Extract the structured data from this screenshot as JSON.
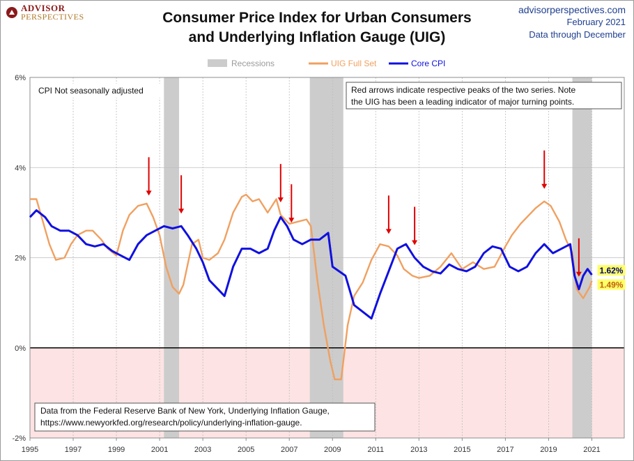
{
  "branding": {
    "logo_line1": "ADVISOR",
    "logo_line2": "PERSPECTIVES",
    "site": "advisorperspectives.com",
    "date": "February 2021",
    "data_through": "Data through December"
  },
  "colors": {
    "uig": "#f0a060",
    "core": "#1010e0",
    "recession": "#cccccc",
    "arrow": "#e00000",
    "negative_zone": "#fde3e3"
  },
  "chart_data": {
    "type": "line",
    "title": "Consumer Price Index for Urban Consumers and Underlying Inflation Gauge (UIG)",
    "title_lines": [
      "Consumer Price Index for Urban Consumers",
      "and Underlying Inflation Gauge (UIG)"
    ],
    "xlabel": "",
    "ylabel": "",
    "xlim": [
      1995,
      2022.5
    ],
    "ylim": [
      -2,
      6
    ],
    "x_ticks": [
      1995,
      1997,
      1999,
      2001,
      2003,
      2005,
      2007,
      2009,
      2011,
      2013,
      2015,
      2017,
      2019,
      2021
    ],
    "y_ticks": [
      -2,
      0,
      2,
      4,
      6
    ],
    "y_tick_labels": [
      "-2%",
      "0%",
      "2%",
      "4%",
      "6%"
    ],
    "legend": {
      "position": "top-center",
      "entries": [
        {
          "label": "Recessions",
          "kind": "band"
        },
        {
          "label": "UIG Full Set",
          "kind": "line"
        },
        {
          "label": "Core CPI",
          "kind": "line"
        }
      ]
    },
    "recessions": [
      [
        2001.2,
        2001.9
      ],
      [
        2007.95,
        2009.5
      ],
      [
        2020.1,
        2021.0
      ]
    ],
    "series": [
      {
        "name": "UIG Full Set",
        "x": [
          1995.0,
          1995.3,
          1995.6,
          1995.9,
          1996.2,
          1996.6,
          1996.9,
          1997.2,
          1997.6,
          1997.9,
          1998.3,
          1998.6,
          1999.0,
          1999.3,
          1999.6,
          2000.0,
          2000.4,
          2000.7,
          2001.0,
          2001.3,
          2001.6,
          2001.9,
          2002.1,
          2002.5,
          2002.8,
          2003.0,
          2003.3,
          2003.7,
          2004.0,
          2004.4,
          2004.8,
          2005.0,
          2005.3,
          2005.6,
          2006.0,
          2006.4,
          2006.6,
          2007.0,
          2007.4,
          2007.8,
          2008.0,
          2008.3,
          2008.6,
          2008.9,
          2009.1,
          2009.4,
          2009.7,
          2010.0,
          2010.4,
          2010.8,
          2011.2,
          2011.6,
          2012.0,
          2012.3,
          2012.7,
          2013.0,
          2013.5,
          2014.0,
          2014.5,
          2015.0,
          2015.5,
          2016.0,
          2016.5,
          2017.0,
          2017.3,
          2017.7,
          2018.0,
          2018.4,
          2018.8,
          2019.1,
          2019.5,
          2019.8,
          2020.1,
          2020.3,
          2020.6,
          2020.9,
          2021.0
        ],
        "values": [
          3.3,
          3.3,
          2.8,
          2.3,
          1.95,
          2.0,
          2.3,
          2.5,
          2.6,
          2.6,
          2.4,
          2.2,
          2.05,
          2.6,
          2.95,
          3.15,
          3.2,
          2.9,
          2.5,
          1.8,
          1.35,
          1.2,
          1.4,
          2.3,
          2.4,
          2.0,
          1.95,
          2.1,
          2.4,
          3.0,
          3.35,
          3.4,
          3.25,
          3.3,
          3.0,
          3.3,
          2.95,
          2.75,
          2.8,
          2.85,
          2.7,
          1.5,
          0.5,
          -0.3,
          -0.7,
          -0.7,
          0.5,
          1.15,
          1.45,
          1.95,
          2.3,
          2.25,
          2.05,
          1.75,
          1.6,
          1.55,
          1.6,
          1.8,
          2.1,
          1.75,
          1.9,
          1.75,
          1.8,
          2.25,
          2.5,
          2.75,
          2.9,
          3.1,
          3.25,
          3.15,
          2.8,
          2.4,
          2.1,
          1.3,
          1.1,
          1.35,
          1.49
        ]
      },
      {
        "name": "Core CPI",
        "x": [
          1995.0,
          1995.3,
          1995.7,
          1996.0,
          1996.4,
          1996.8,
          1997.2,
          1997.6,
          1998.0,
          1998.4,
          1998.8,
          1999.2,
          1999.6,
          2000.0,
          2000.4,
          2000.8,
          2001.2,
          2001.6,
          2002.0,
          2002.3,
          2002.7,
          2003.0,
          2003.3,
          2003.7,
          2004.0,
          2004.4,
          2004.8,
          2005.2,
          2005.6,
          2006.0,
          2006.3,
          2006.6,
          2006.9,
          2007.2,
          2007.6,
          2008.0,
          2008.4,
          2008.8,
          2009.0,
          2009.3,
          2009.6,
          2010.0,
          2010.4,
          2010.8,
          2011.2,
          2011.6,
          2012.0,
          2012.4,
          2012.8,
          2013.2,
          2013.6,
          2014.0,
          2014.4,
          2014.8,
          2015.2,
          2015.6,
          2016.0,
          2016.4,
          2016.8,
          2017.2,
          2017.6,
          2018.0,
          2018.4,
          2018.8,
          2019.2,
          2019.6,
          2020.0,
          2020.2,
          2020.4,
          2020.6,
          2020.8,
          2021.0
        ],
        "values": [
          2.9,
          3.05,
          2.9,
          2.7,
          2.6,
          2.6,
          2.5,
          2.3,
          2.25,
          2.3,
          2.15,
          2.05,
          1.95,
          2.3,
          2.5,
          2.6,
          2.7,
          2.65,
          2.7,
          2.5,
          2.2,
          1.9,
          1.5,
          1.3,
          1.15,
          1.8,
          2.2,
          2.2,
          2.1,
          2.2,
          2.6,
          2.9,
          2.7,
          2.4,
          2.3,
          2.4,
          2.4,
          2.55,
          1.8,
          1.7,
          1.6,
          0.95,
          0.8,
          0.65,
          1.2,
          1.7,
          2.2,
          2.3,
          2.0,
          1.8,
          1.7,
          1.65,
          1.85,
          1.75,
          1.7,
          1.8,
          2.1,
          2.25,
          2.2,
          1.8,
          1.7,
          1.8,
          2.1,
          2.3,
          2.1,
          2.2,
          2.3,
          1.6,
          1.3,
          1.6,
          1.75,
          1.62
        ]
      }
    ],
    "arrows": [
      {
        "x": 2000.5,
        "series": "UIG Full Set"
      },
      {
        "x": 2002.0,
        "series": "Core CPI"
      },
      {
        "x": 2006.6,
        "series": "UIG Full Set"
      },
      {
        "x": 2007.1,
        "series": "Core CPI"
      },
      {
        "x": 2011.6,
        "series": "UIG Full Set"
      },
      {
        "x": 2012.8,
        "series": "Core CPI"
      },
      {
        "x": 2018.8,
        "series": "UIG Full Set"
      },
      {
        "x": 2020.4,
        "series": "Core CPI"
      }
    ],
    "end_labels": [
      {
        "series": "Core CPI",
        "text": "1.62%"
      },
      {
        "series": "UIG Full Set",
        "text": "1.49%"
      }
    ],
    "annotations": {
      "cpi_note": "CPI Not seasonally adjusted",
      "arrows_note": [
        "Red arrows indicate respective peaks of the two series. Note",
        "the UIG has been a leading indicator of major turning points."
      ],
      "source_note": [
        "Data from the Federal Reserve Bank of New York, Underlying Inflation Gauge,",
        "https://www.newyorkfed.org/research/policy/underlying-inflation-gauge."
      ]
    }
  }
}
